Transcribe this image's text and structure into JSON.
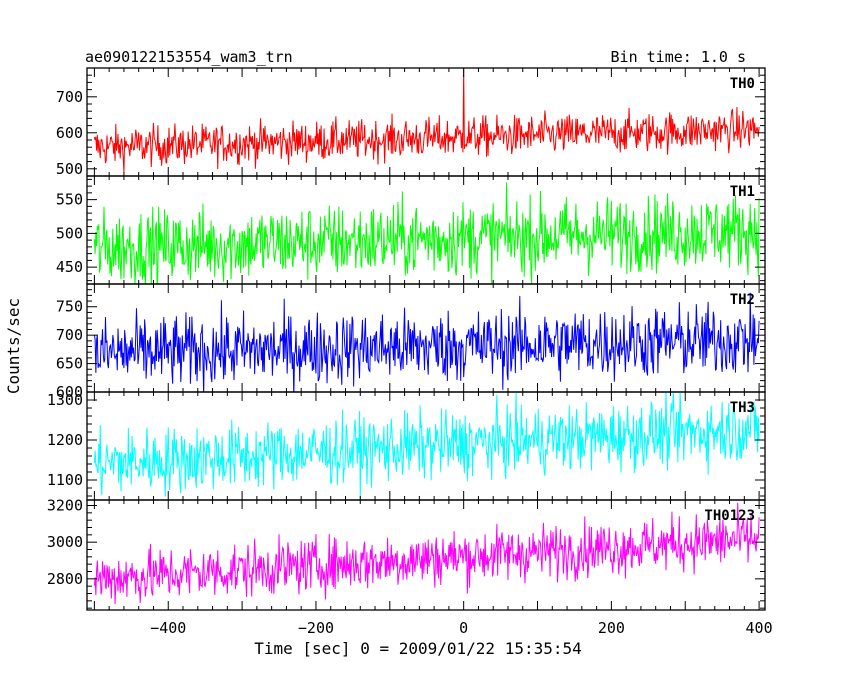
{
  "header": {
    "title": "ae090122153554_wam3_trn",
    "bin_time": "Bin time: 1.0 s"
  },
  "chart_data": {
    "type": "line",
    "xlabel": "Time [sec] 0 = 2009/01/22 15:35:54",
    "ylabel": "Counts/sec",
    "xlim": [
      -510,
      408
    ],
    "x_ticks": [
      -400,
      -200,
      0,
      200,
      400
    ],
    "x_tick_labels": [
      "−400",
      "−200",
      "0",
      "200",
      "400"
    ],
    "x_range_data": [
      -500,
      400
    ],
    "panels": [
      {
        "name": "TH0",
        "color": "#ff0000",
        "ylim": [
          480,
          780
        ],
        "yticks": [
          500,
          600,
          700
        ],
        "trend_start": 560,
        "trend_end": 610,
        "noise": 28,
        "spike": {
          "x": 0,
          "y": 780
        }
      },
      {
        "name": "TH1",
        "color": "#00ff00",
        "ylim": [
          425,
          585
        ],
        "yticks": [
          450,
          500,
          550
        ],
        "trend_start": 478,
        "trend_end": 505,
        "noise": 28
      },
      {
        "name": "TH2",
        "color": "#0000ff",
        "ylim": [
          600,
          790
        ],
        "yticks": [
          600,
          650,
          700,
          750
        ],
        "trend_start": 668,
        "trend_end": 692,
        "noise": 32
      },
      {
        "name": "TH3",
        "color": "#00ffff",
        "ylim": [
          1050,
          1320
        ],
        "yticks": [
          1100,
          1200,
          1300
        ],
        "trend_start": 1140,
        "trend_end": 1230,
        "noise": 42
      },
      {
        "name": "TH0123",
        "color": "#ff00ff",
        "ylim": [
          2630,
          3230
        ],
        "yticks": [
          2800,
          3000,
          3200
        ],
        "trend_start": 2800,
        "trend_end": 3020,
        "noise": 75
      }
    ]
  }
}
